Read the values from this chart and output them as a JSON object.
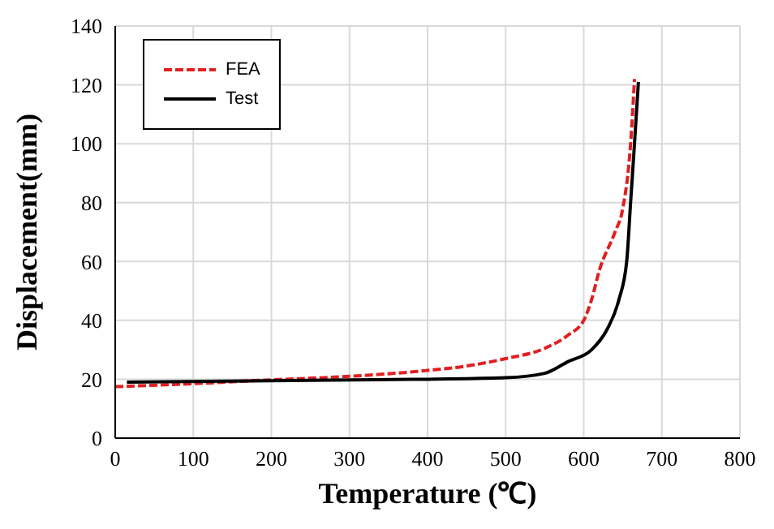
{
  "chart_data": {
    "type": "line",
    "xlabel": "Temperature (℃)",
    "ylabel": "Displacement(mm)",
    "xlim": [
      0,
      800
    ],
    "xticks": [
      0,
      100,
      200,
      300,
      400,
      500,
      600,
      700,
      800
    ],
    "ylim": [
      0,
      140
    ],
    "yticks": [
      0,
      20,
      40,
      60,
      80,
      100,
      120,
      140
    ],
    "grid": true,
    "legend": "top left",
    "marker": "none",
    "series": [
      {
        "name": "FEA",
        "color": "#e02020",
        "line_style": "dashed",
        "x": [
          0,
          100,
          200,
          300,
          400,
          450,
          500,
          550,
          580,
          600,
          610,
          620,
          640,
          650,
          660,
          665
        ],
        "values": [
          17.5,
          18.5,
          19.8,
          21,
          23,
          24.5,
          27,
          30.5,
          35,
          40,
          47,
          57,
          70,
          78,
          100,
          122
        ]
      },
      {
        "name": "Test",
        "color": "#000000",
        "line_style": "solid",
        "x": [
          15,
          200,
          400,
          500,
          550,
          580,
          610,
          630,
          645,
          655,
          660,
          665,
          670
        ],
        "values": [
          19,
          19.5,
          20,
          20.5,
          22,
          26,
          30,
          37,
          47,
          60,
          80,
          100,
          121
        ]
      }
    ]
  }
}
